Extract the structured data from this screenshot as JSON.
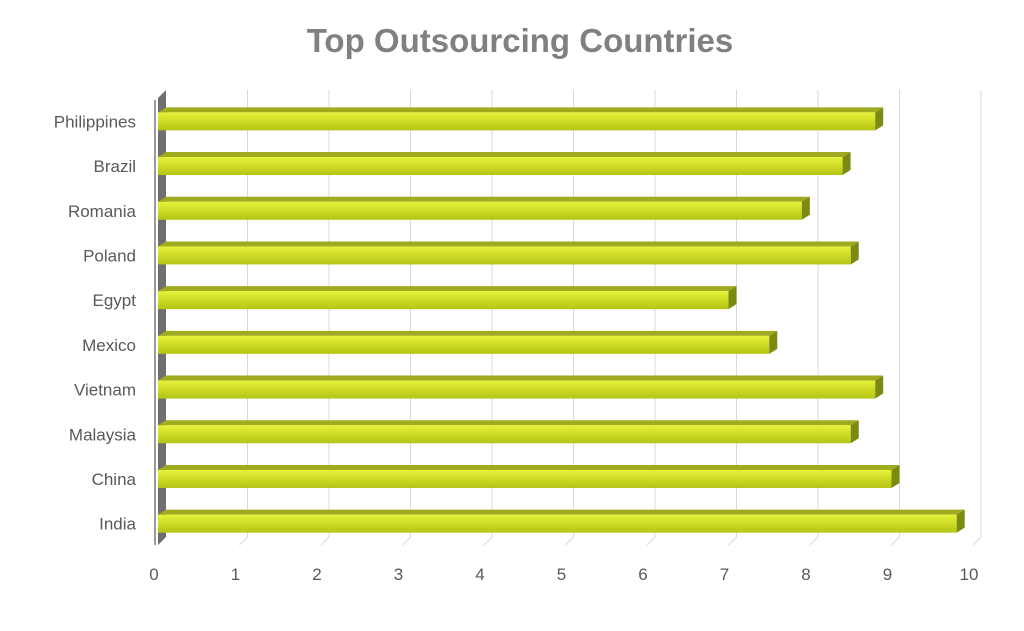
{
  "chart_data": {
    "type": "bar",
    "orientation": "horizontal",
    "title": "Top Outsourcing Countries",
    "xlabel": "",
    "ylabel": "",
    "categories": [
      "India",
      "China",
      "Malaysia",
      "Vietnam",
      "Mexico",
      "Egypt",
      "Poland",
      "Romania",
      "Brazil",
      "Philippines"
    ],
    "series": [
      {
        "values": [
          9.8,
          9.0,
          8.5,
          8.8,
          7.5,
          7.0,
          8.5,
          7.9,
          8.4,
          8.8
        ]
      }
    ],
    "xlim": [
      0,
      10
    ],
    "xticks": [
      "0",
      "1",
      "2",
      "3",
      "4",
      "5",
      "6",
      "7",
      "8",
      "9",
      "10"
    ],
    "grid": true,
    "legend": "none",
    "style": "3d",
    "colors": {
      "bar_top": "#e6f23a",
      "bar_bottom": "#b4c414",
      "bar_cap": "#a0aa1e",
      "bar_side": "#7d8a12",
      "axis_wall": "#6f6f6f",
      "gridline": "#d9d9d9",
      "label": "#595959",
      "title": "#808080"
    }
  }
}
